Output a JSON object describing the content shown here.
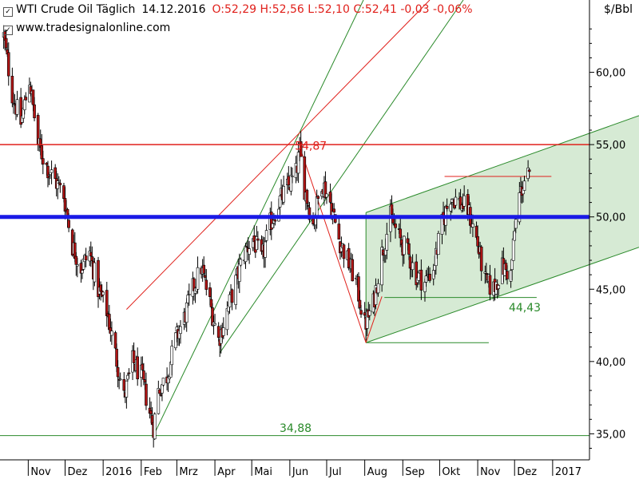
{
  "header": {
    "symbol": "WTI Crude Oil Täglich",
    "date": "14.12.2016",
    "ohlc": "O:52,29 H:52,56 L:52,10 C:52,41 -0,03 -0,06%",
    "source": "www.tradesignalonline.com",
    "unit": "$/Bbl"
  },
  "colors": {
    "up": "#ffffff",
    "down": "#b01515",
    "outline": "#000000",
    "support_blue": "#1a1ae6",
    "resistance_red": "#e0201b",
    "trend_green": "#2a8a2a",
    "channel_fill": "#cfe6cc",
    "annotation_red": "#e0201b",
    "annotation_green": "#2a8a2a"
  },
  "chart_data": {
    "type": "candlestick",
    "ylim": [
      33.2,
      65.0
    ],
    "y_ticks": [
      "35,00",
      "40,00",
      "45,00",
      "50,00",
      "55,00",
      "60,00"
    ],
    "y_tick_values": [
      35,
      40,
      45,
      50,
      55,
      60
    ],
    "x_ticks": [
      {
        "label": "Nov",
        "date": "2015-11-01"
      },
      {
        "label": "Dez",
        "date": "2015-12-01"
      },
      {
        "label": "2016",
        "date": "2016-01-01"
      },
      {
        "label": "Feb",
        "date": "2016-02-01"
      },
      {
        "label": "Mrz",
        "date": "2016-03-01"
      },
      {
        "label": "Apr",
        "date": "2016-04-01"
      },
      {
        "label": "Mai",
        "date": "2016-05-01"
      },
      {
        "label": "Jun",
        "date": "2016-06-01"
      },
      {
        "label": "Jul",
        "date": "2016-07-01"
      },
      {
        "label": "Aug",
        "date": "2016-08-01"
      },
      {
        "label": "Sep",
        "date": "2016-09-01"
      },
      {
        "label": "Okt",
        "date": "2016-10-01"
      },
      {
        "label": "Nov",
        "date": "2016-11-01"
      },
      {
        "label": "Dez",
        "date": "2016-12-01"
      },
      {
        "label": "2017",
        "date": "2017-01-01"
      }
    ],
    "price_path": [
      [
        "2015-10-12",
        62.5
      ],
      [
        "2015-10-19",
        58.5
      ],
      [
        "2015-10-26",
        56.5
      ],
      [
        "2015-11-02",
        59.5
      ],
      [
        "2015-11-09",
        55.0
      ],
      [
        "2015-11-16",
        53.5
      ],
      [
        "2015-11-23",
        52.5
      ],
      [
        "2015-11-30",
        51.5
      ],
      [
        "2015-12-07",
        48.0
      ],
      [
        "2015-12-14",
        46.5
      ],
      [
        "2015-12-21",
        47.5
      ],
      [
        "2015-12-28",
        45.0
      ],
      [
        "2016-01-04",
        43.5
      ],
      [
        "2016-01-11",
        40.5
      ],
      [
        "2016-01-18",
        37.5
      ],
      [
        "2016-01-25",
        40.0
      ],
      [
        "2016-02-01",
        39.0
      ],
      [
        "2016-02-08",
        36.5
      ],
      [
        "2016-02-11",
        35.5
      ],
      [
        "2016-02-15",
        38.0
      ],
      [
        "2016-02-22",
        39.0
      ],
      [
        "2016-02-29",
        41.5
      ],
      [
        "2016-03-07",
        43.0
      ],
      [
        "2016-03-14",
        45.0
      ],
      [
        "2016-03-21",
        46.5
      ],
      [
        "2016-03-28",
        44.0
      ],
      [
        "2016-04-04",
        41.5
      ],
      [
        "2016-04-11",
        43.5
      ],
      [
        "2016-04-18",
        45.5
      ],
      [
        "2016-04-25",
        47.5
      ],
      [
        "2016-05-02",
        48.5
      ],
      [
        "2016-05-09",
        47.0
      ],
      [
        "2016-05-16",
        49.5
      ],
      [
        "2016-05-23",
        51.0
      ],
      [
        "2016-05-30",
        52.0
      ],
      [
        "2016-06-06",
        53.0
      ],
      [
        "2016-06-09",
        54.5
      ],
      [
        "2016-06-13",
        52.0
      ],
      [
        "2016-06-20",
        49.5
      ],
      [
        "2016-06-27",
        52.5
      ],
      [
        "2016-07-04",
        51.0
      ],
      [
        "2016-07-11",
        48.5
      ],
      [
        "2016-07-18",
        47.0
      ],
      [
        "2016-07-25",
        45.5
      ],
      [
        "2016-08-01",
        42.5
      ],
      [
        "2016-08-08",
        44.0
      ],
      [
        "2016-08-15",
        47.5
      ],
      [
        "2016-08-22",
        50.0
      ],
      [
        "2016-08-29",
        48.5
      ],
      [
        "2016-09-05",
        47.5
      ],
      [
        "2016-09-12",
        46.0
      ],
      [
        "2016-09-19",
        45.5
      ],
      [
        "2016-09-26",
        46.5
      ],
      [
        "2016-10-03",
        49.5
      ],
      [
        "2016-10-10",
        51.5
      ],
      [
        "2016-10-17",
        51.0
      ],
      [
        "2016-10-24",
        50.5
      ],
      [
        "2016-10-31",
        48.5
      ],
      [
        "2016-11-07",
        45.5
      ],
      [
        "2016-11-14",
        45.0
      ],
      [
        "2016-11-21",
        46.5
      ],
      [
        "2016-11-28",
        46.0
      ],
      [
        "2016-12-01",
        49.0
      ],
      [
        "2016-12-05",
        51.5
      ],
      [
        "2016-12-09",
        52.5
      ],
      [
        "2016-12-12",
        52.8
      ],
      [
        "2016-12-14",
        52.41
      ]
    ],
    "lines": {
      "support_50": 50.0,
      "resistance_55": 55.0,
      "low_level": 34.88,
      "high_level": 54.87,
      "aug_low": 41.3,
      "nov_support": 44.43,
      "dec_resistance": 52.8
    },
    "annotations": [
      {
        "text": "54,87",
        "color": "annotation_red"
      },
      {
        "text": "34,88",
        "color": "annotation_green"
      },
      {
        "text": "44,43",
        "color": "annotation_green"
      }
    ]
  }
}
